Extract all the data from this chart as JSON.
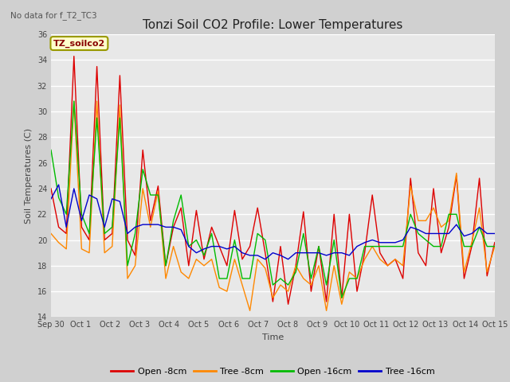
{
  "title": "Tonzi Soil CO2 Profile: Lower Temperatures",
  "no_data_label": "No data for f_T2_TC3",
  "tz_label": "TZ_soilco2",
  "ylabel": "Soil Temperatures (C)",
  "xlabel": "Time",
  "ylim": [
    14,
    36
  ],
  "yticks": [
    14,
    16,
    18,
    20,
    22,
    24,
    26,
    28,
    30,
    32,
    34,
    36
  ],
  "bg_color": "#e8e8e8",
  "grid_color": "#ffffff",
  "series_colors": [
    "#dd0000",
    "#ff8800",
    "#00bb00",
    "#0000cc"
  ],
  "series_labels": [
    "Open -8cm",
    "Tree -8cm",
    "Open -16cm",
    "Tree -16cm"
  ],
  "xtick_labels": [
    "Sep 30",
    "Oct 1",
    "Oct 2",
    "Oct 3",
    "Oct 4",
    "Oct 5",
    "Oct 6",
    "Oct 7",
    "Oct 8",
    "Oct 9",
    "Oct 10",
    "Oct 11",
    "Oct 12",
    "Oct 13",
    "Oct 14",
    "Oct 15"
  ],
  "open8": [
    24.0,
    21.0,
    20.5,
    34.3,
    21.0,
    20.0,
    33.5,
    20.0,
    20.5,
    32.8,
    20.0,
    18.8,
    27.0,
    21.5,
    24.2,
    18.0,
    21.0,
    22.5,
    18.0,
    22.3,
    18.5,
    21.0,
    19.5,
    18.0,
    22.3,
    18.5,
    19.5,
    22.5,
    19.0,
    15.2,
    19.5,
    15.0,
    18.0,
    22.2,
    16.0,
    19.5,
    15.2,
    22.0,
    15.5,
    22.0,
    16.0,
    19.0,
    23.5,
    19.0,
    18.0,
    18.5,
    17.0,
    24.8,
    19.0,
    18.0,
    24.0,
    19.0,
    21.0,
    25.0,
    17.0,
    19.5,
    24.8,
    17.2,
    19.8
  ],
  "tree8": [
    20.5,
    19.8,
    19.3,
    30.8,
    19.3,
    19.0,
    30.8,
    19.0,
    19.5,
    30.5,
    17.0,
    18.0,
    24.0,
    21.0,
    23.8,
    17.0,
    19.5,
    17.5,
    17.0,
    18.5,
    18.0,
    18.5,
    16.3,
    16.0,
    18.5,
    16.5,
    14.5,
    18.5,
    17.8,
    15.5,
    16.5,
    16.0,
    18.0,
    17.0,
    16.5,
    18.0,
    14.5,
    18.0,
    15.0,
    17.5,
    17.0,
    18.5,
    19.5,
    18.5,
    18.0,
    18.5,
    18.0,
    24.2,
    21.5,
    21.5,
    22.5,
    21.0,
    21.5,
    25.2,
    17.5,
    19.8,
    22.5,
    17.5,
    19.5
  ],
  "open16": [
    27.0,
    23.3,
    22.0,
    30.8,
    22.0,
    20.5,
    29.5,
    20.5,
    21.0,
    29.5,
    18.0,
    20.5,
    25.5,
    23.5,
    23.5,
    18.0,
    21.5,
    23.5,
    19.5,
    20.0,
    18.8,
    20.5,
    17.0,
    17.0,
    20.0,
    17.0,
    17.0,
    20.5,
    20.0,
    16.5,
    17.0,
    16.5,
    17.5,
    20.5,
    17.0,
    19.5,
    16.5,
    20.0,
    15.5,
    17.0,
    17.0,
    19.5,
    19.5,
    19.5,
    19.5,
    19.5,
    19.5,
    22.0,
    20.5,
    20.0,
    19.5,
    19.5,
    22.0,
    22.0,
    19.5,
    19.5,
    21.0,
    19.5,
    19.5
  ],
  "tree16": [
    23.2,
    24.3,
    21.0,
    24.0,
    21.5,
    23.5,
    23.2,
    21.0,
    23.2,
    23.0,
    20.5,
    21.0,
    21.2,
    21.2,
    21.2,
    21.0,
    21.0,
    20.8,
    19.5,
    19.0,
    19.3,
    19.5,
    19.5,
    19.3,
    19.5,
    19.0,
    18.8,
    18.8,
    18.5,
    19.0,
    18.8,
    18.5,
    19.0,
    19.0,
    19.0,
    19.0,
    18.8,
    19.0,
    19.0,
    18.8,
    19.5,
    19.8,
    20.0,
    19.8,
    19.8,
    19.8,
    20.0,
    21.0,
    20.8,
    20.5,
    20.5,
    20.5,
    20.5,
    21.2,
    20.3,
    20.5,
    21.0,
    20.5,
    20.5
  ]
}
